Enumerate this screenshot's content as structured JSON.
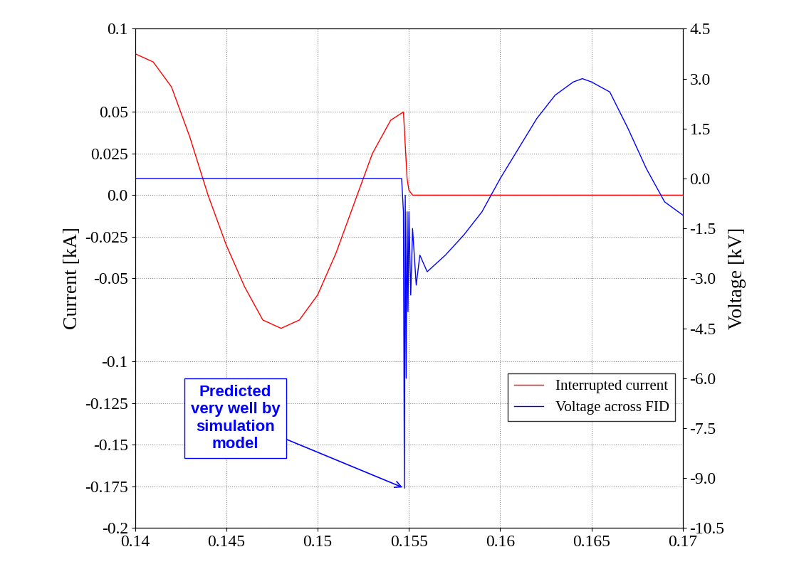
{
  "chart_data": {
    "type": "line",
    "x_label_left": "Current [kA]",
    "y2_label": "Voltage [kV]",
    "xlim": [
      0.14,
      0.17
    ],
    "xticks": [
      0.14,
      0.145,
      0.15,
      0.155,
      0.16,
      0.165,
      0.17
    ],
    "ylim": [
      -0.2,
      0.1
    ],
    "yticks": [
      0.1,
      0.05,
      0.025,
      0.0,
      -0.025,
      -0.05,
      -0.1,
      -0.125,
      -0.15,
      -0.175,
      -0.2
    ],
    "y2lim": [
      -10.5,
      4.5
    ],
    "y2ticks": [
      4.5,
      3.0,
      1.5,
      0.0,
      -1.5,
      -3.0,
      -4.5,
      -6.0,
      -7.5,
      -9.0,
      -10.5
    ],
    "grid": true,
    "legend": "lower right",
    "series": [
      {
        "name": "Interrupted current",
        "color": "#ff0000",
        "line_style": "solid",
        "x": [
          0.14,
          0.141,
          0.142,
          0.143,
          0.144,
          0.145,
          0.146,
          0.147,
          0.148,
          0.149,
          0.15,
          0.151,
          0.152,
          0.153,
          0.154,
          0.1547,
          0.1549,
          0.155,
          0.1552,
          0.156,
          0.17
        ],
        "values": [
          0.085,
          0.08,
          0.065,
          0.035,
          0.0,
          -0.03,
          -0.055,
          -0.075,
          -0.08,
          -0.075,
          -0.06,
          -0.035,
          -0.005,
          0.025,
          0.045,
          0.05,
          0.01,
          0.003,
          0.0,
          0.0,
          0.0
        ]
      },
      {
        "name": "Voltage across FID",
        "color": "#0000ff",
        "line_style": "solid",
        "axis": "y2",
        "x": [
          0.14,
          0.145,
          0.15,
          0.1546,
          0.1547,
          0.15475,
          0.1548,
          0.15485,
          0.1549,
          0.15495,
          0.155,
          0.1551,
          0.1552,
          0.1554,
          0.1556,
          0.156,
          0.157,
          0.158,
          0.159,
          0.16,
          0.161,
          0.162,
          0.163,
          0.164,
          0.1645,
          0.165,
          0.166,
          0.167,
          0.168,
          0.169,
          0.17
        ],
        "values": [
          0.0,
          0.0,
          0.0,
          0.0,
          -1.0,
          -9.3,
          -0.5,
          -6.0,
          -1.0,
          -4.0,
          -1.0,
          -3.5,
          -1.5,
          -3.2,
          -2.3,
          -2.8,
          -2.3,
          -1.7,
          -1.0,
          0.0,
          0.9,
          1.8,
          2.5,
          2.9,
          3.0,
          2.9,
          2.6,
          1.5,
          0.3,
          -0.7,
          -1.1
        ]
      }
    ],
    "annotations": [
      {
        "text": "Predicted\nvery well by\nsimulation\nmodel",
        "x": 0.15475,
        "y": -9.3,
        "axis": "y2",
        "color": "#0000ff"
      }
    ]
  }
}
